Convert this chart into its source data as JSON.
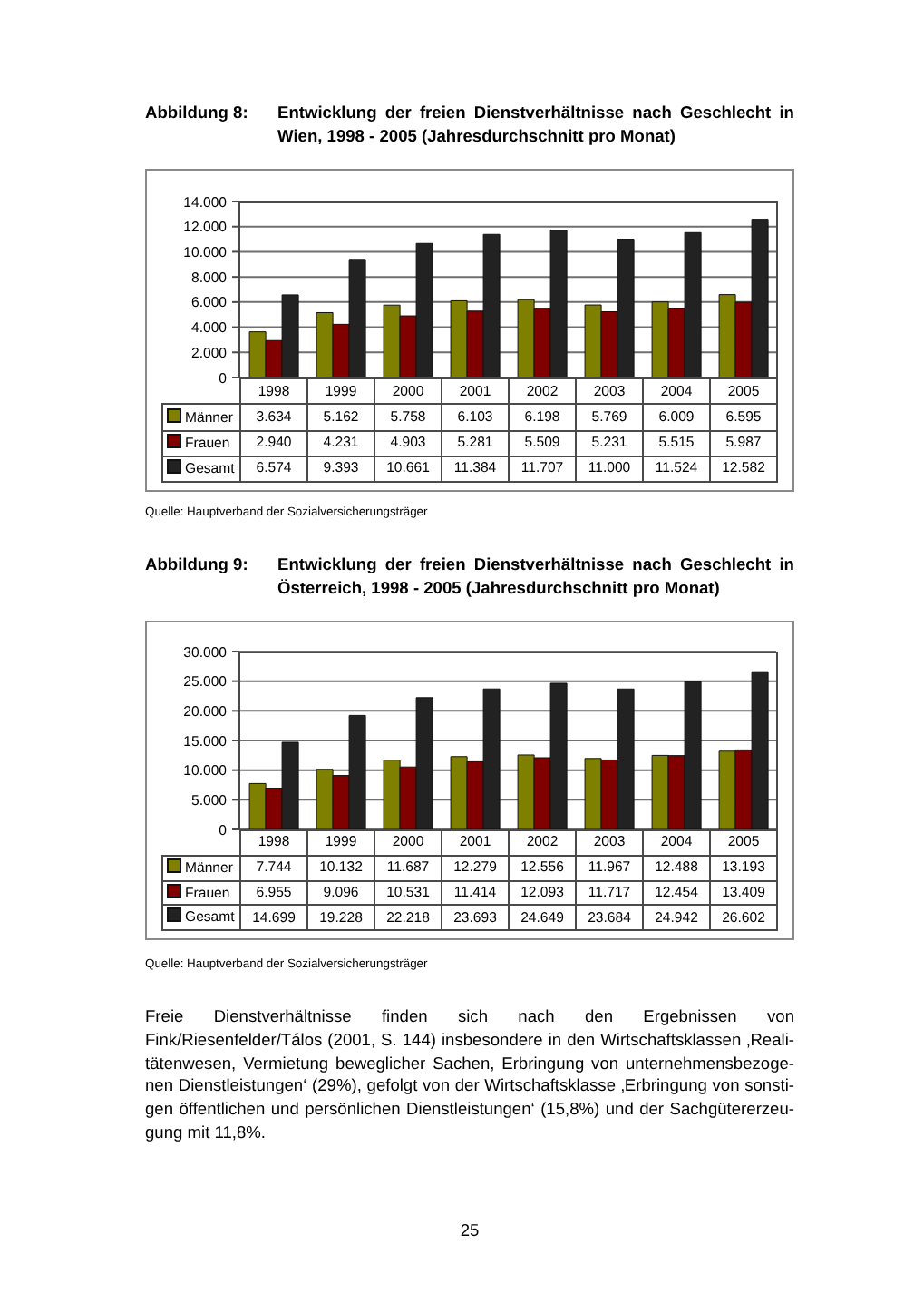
{
  "chart_data": [
    {
      "type": "bar",
      "title": "Abbildung 8:",
      "subtitle": "Entwicklung der freien Dienstverhältnisse nach Geschlecht in Wien, 1998 - 2005 (Jahresdurchschnitt pro Monat)",
      "categories": [
        "1998",
        "1999",
        "2000",
        "2001",
        "2002",
        "2003",
        "2004",
        "2005"
      ],
      "series": [
        {
          "name": "Männer",
          "color": "#808000",
          "values": [
            3634,
            5162,
            5758,
            6103,
            6198,
            5769,
            6009,
            6595
          ],
          "value_labels": [
            "3.634",
            "5.162",
            "5.758",
            "6.103",
            "6.198",
            "5.769",
            "6.009",
            "6.595"
          ]
        },
        {
          "name": "Frauen",
          "color": "#800000",
          "values": [
            2940,
            4231,
            4903,
            5281,
            5509,
            5231,
            5515,
            5987
          ],
          "value_labels": [
            "2.940",
            "4.231",
            "4.903",
            "5.281",
            "5.509",
            "5.231",
            "5.515",
            "5.987"
          ]
        },
        {
          "name": "Gesamt",
          "color": "#222222",
          "values": [
            6574,
            9393,
            10661,
            11384,
            11707,
            11000,
            11524,
            12582
          ],
          "value_labels": [
            "6.574",
            "9.393",
            "10.661",
            "11.384",
            "11.707",
            "11.000",
            "11.524",
            "12.582"
          ]
        }
      ],
      "ylim": [
        0,
        14000
      ],
      "yticks": [
        0,
        {
          "value": 2000,
          "label": "2.000"
        },
        {
          "value": 4000,
          "label": "4.000"
        },
        {
          "value": 6000,
          "label": "6.000"
        },
        {
          "value": 8000,
          "label": "8.000"
        },
        {
          "value": 10000,
          "label": "10.000"
        },
        {
          "value": 12000,
          "label": "12.000"
        },
        {
          "value": 14000,
          "label": "14.000"
        }
      ],
      "grid": "y",
      "legend": "bottom",
      "annotations": [
        "Quelle: Hauptverband der Sozialversicherungsträger"
      ]
    },
    {
      "type": "bar",
      "title": "Abbildung 9:",
      "subtitle": "Entwicklung der freien Dienstverhältnisse nach Geschlecht in Österreich, 1998 - 2005 (Jahresdurchschnitt pro Monat)",
      "categories": [
        "1998",
        "1999",
        "2000",
        "2001",
        "2002",
        "2003",
        "2004",
        "2005"
      ],
      "series": [
        {
          "name": "Männer",
          "color": "#808000",
          "values": [
            7744,
            10132,
            11687,
            12279,
            12556,
            11967,
            12488,
            13193
          ],
          "value_labels": [
            "7.744",
            "10.132",
            "11.687",
            "12.279",
            "12.556",
            "11.967",
            "12.488",
            "13.193"
          ]
        },
        {
          "name": "Frauen",
          "color": "#800000",
          "values": [
            6955,
            9096,
            10531,
            11414,
            12093,
            11717,
            12454,
            13409
          ],
          "value_labels": [
            "6.955",
            "9.096",
            "10.531",
            "11.414",
            "12.093",
            "11.717",
            "12.454",
            "13.409"
          ]
        },
        {
          "name": "Gesamt",
          "color": "#222222",
          "values": [
            14699,
            19228,
            22218,
            23693,
            24649,
            23684,
            24942,
            26602
          ],
          "value_labels": [
            "14.699",
            "19.228",
            "22.218",
            "23.693",
            "24.649",
            "23.684",
            "24.942",
            "26.602"
          ]
        }
      ],
      "ylim": [
        0,
        30000
      ],
      "yticks": [
        0,
        {
          "value": 5000,
          "label": "5.000"
        },
        {
          "value": 10000,
          "label": "10.000"
        },
        {
          "value": 15000,
          "label": "15.000"
        },
        {
          "value": 20000,
          "label": "20.000"
        },
        {
          "value": 25000,
          "label": "25.000"
        },
        {
          "value": 30000,
          "label": "30.000"
        }
      ],
      "grid": "y",
      "legend": "bottom",
      "annotations": [
        "Quelle: Hauptverband der Sozialversicherungsträger"
      ]
    },
    {
      "type": "other",
      "annotations": [
        "Freie Dienstverhältnisse finden sich nach den Ergebnissen von\nFink/Riesenfelder/Tálos (2001, S. 144) insbesondere in den Wirtschaftsklassen ‚Reali-\ntätenwesen, Vermietung beweglicher Sachen, Erbringung von unternehmensbezoge-\nnen Dienstleistungen‘ (29%), gefolgt von der Wirtschaftsklasse ‚Erbringung von sonsti-\ngen öffentlichen und persönlichen Dienstleistungen‘ (15,8%) und der Sachgütererzeu-\ngung mit 11,8%.",
        "25"
      ]
    }
  ]
}
